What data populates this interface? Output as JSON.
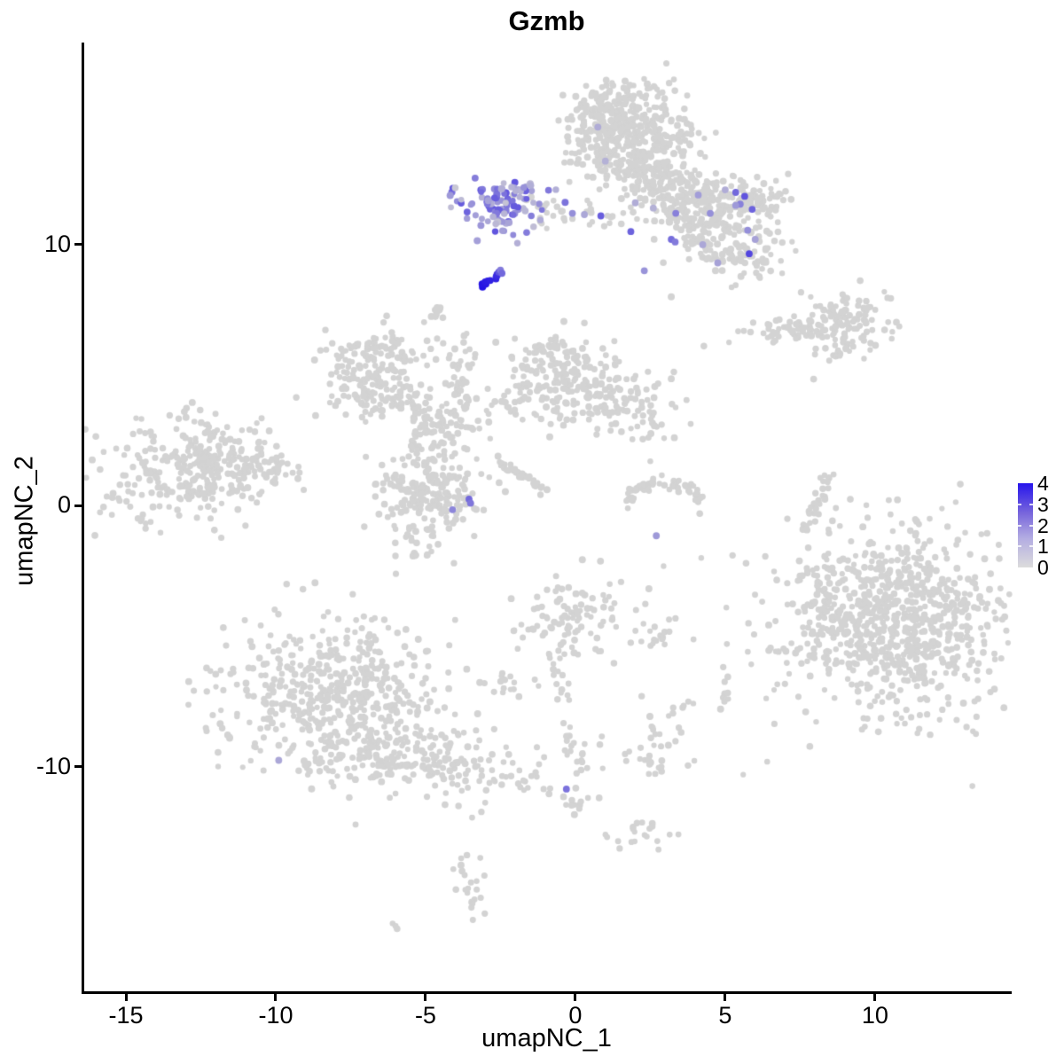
{
  "title": "Gzmb",
  "axes": {
    "x": {
      "label": "umapNC_1",
      "ticks": [
        -15,
        -10,
        -5,
        0,
        5,
        10
      ]
    },
    "y": {
      "label": "umapNC_2",
      "ticks": [
        -10,
        0,
        10
      ]
    }
  },
  "legend": {
    "ticks": [
      0,
      1,
      2,
      3,
      4
    ],
    "low_color": "#DCDCDC",
    "high_color": "#2715EC"
  },
  "colors": {
    "background": "#FFFFFF",
    "axis": "#000000",
    "grey_point": "#D3D3D3"
  },
  "chart_data": {
    "type": "scatter",
    "title": "Gzmb",
    "xlabel": "umapNC_1",
    "ylabel": "umapNC_2",
    "xlim": [
      -16.45,
      14.53
    ],
    "ylim": [
      -18.63,
      17.84
    ],
    "grid": false,
    "legend_position": "right",
    "point_color_scale": {
      "low": "#D3D3D3",
      "high": "#2210E4",
      "domain": [
        0,
        4
      ]
    },
    "seed": 42,
    "clusters": [
      {
        "name": "top-mushroom-main",
        "t": "g",
        "x": 1.9,
        "y": 14.2,
        "sx": 1.0,
        "sy": 0.95,
        "n": 360
      },
      {
        "name": "top-mushroom-cap",
        "t": "g",
        "x": 1.1,
        "y": 15.2,
        "sx": 0.6,
        "sy": 0.45,
        "n": 60
      },
      {
        "name": "top-mushroom-left",
        "t": "g",
        "x": 0.45,
        "y": 14.6,
        "sx": 0.5,
        "sy": 0.6,
        "n": 60
      },
      {
        "name": "top-stem",
        "t": "g",
        "x": 2.7,
        "y": 12.4,
        "sx": 0.75,
        "sy": 0.7,
        "n": 120
      },
      {
        "name": "wing-b0",
        "t": "g",
        "x": 3.9,
        "y": 11.4,
        "sx": 0.65,
        "sy": 0.55,
        "n": 70
      },
      {
        "name": "wing-b1-arm",
        "t": "g",
        "x": 4.9,
        "y": 11.8,
        "sx": 1.0,
        "sy": 0.45,
        "n": 120
      },
      {
        "name": "wing-tip",
        "t": "g",
        "x": 6.2,
        "y": 11.7,
        "sx": 0.45,
        "sy": 0.4,
        "n": 30
      },
      {
        "name": "wing-b2",
        "t": "g",
        "x": 4.4,
        "y": 10.4,
        "sx": 0.8,
        "sy": 0.6,
        "n": 80
      },
      {
        "name": "wing-b3",
        "t": "g",
        "x": 5.6,
        "y": 9.6,
        "sx": 0.7,
        "sy": 0.5,
        "n": 70
      },
      {
        "name": "bridge-grey",
        "t": "g",
        "x": 0.3,
        "y": 11.2,
        "sx": 0.85,
        "sy": 0.25,
        "n": 16
      },
      {
        "name": "p-trail-grey",
        "t": "g",
        "x": -1.0,
        "y": 11.3,
        "sx": 0.7,
        "sy": 0.28,
        "n": 20
      },
      {
        "name": "below-p-blob",
        "t": "g",
        "x": -4.65,
        "y": 7.3,
        "sx": 0.22,
        "sy": 0.28,
        "n": 12
      },
      {
        "name": "sausage-arm",
        "t": "g",
        "x": 7.3,
        "y": 6.8,
        "sx": 0.85,
        "sy": 0.28,
        "n": 60
      },
      {
        "name": "sausage-lobe",
        "t": "g",
        "x": 9.2,
        "y": 7.0,
        "sx": 0.8,
        "sy": 0.55,
        "n": 100
      },
      {
        "name": "sausage-streak",
        "t": "s",
        "x1": 8.5,
        "y1": 5.66,
        "x2": 9.05,
        "y2": 6.04,
        "j": 0.08,
        "n": 10
      },
      {
        "name": "mid-left",
        "t": "g",
        "x": -6.95,
        "y": 5.05,
        "sx": 0.9,
        "sy": 0.8,
        "n": 150
      },
      {
        "name": "mid-left-top",
        "t": "g",
        "x": -6.1,
        "y": 6.1,
        "sx": 0.5,
        "sy": 0.3,
        "n": 30
      },
      {
        "name": "mid-left-arm",
        "t": "g",
        "x": -5.7,
        "y": 4.0,
        "sx": 0.6,
        "sy": 0.4,
        "n": 40
      },
      {
        "name": "vertical-arm",
        "t": "g",
        "x": -3.72,
        "y": 4.9,
        "sx": 0.28,
        "sy": 0.9,
        "n": 45
      },
      {
        "name": "junction-1",
        "t": "g",
        "x": -4.55,
        "y": 2.9,
        "sx": 0.6,
        "sy": 0.7,
        "n": 95
      },
      {
        "name": "bridge-up",
        "t": "s",
        "x1": -3.3,
        "y1": 3.5,
        "x2": -1.0,
        "y2": 4.5,
        "j": 0.22,
        "n": 28
      },
      {
        "name": "north-arm",
        "t": "g",
        "x": -0.5,
        "y": 4.9,
        "sx": 1.0,
        "sy": 0.8,
        "n": 150
      },
      {
        "name": "north-arm-top",
        "t": "g",
        "x": -0.8,
        "y": 6.0,
        "sx": 0.5,
        "sy": 0.35,
        "n": 20
      },
      {
        "name": "east-arm",
        "t": "g",
        "x": 1.4,
        "y": 3.9,
        "sx": 0.95,
        "sy": 0.65,
        "n": 85
      },
      {
        "name": "east-arm-ext",
        "t": "g",
        "x": 2.3,
        "y": 3.2,
        "sx": 0.5,
        "sy": 0.4,
        "n": 18
      },
      {
        "name": "diag-streak",
        "t": "s",
        "x1": -2.54,
        "y1": 1.77,
        "x2": -1.05,
        "y2": 0.6,
        "j": 0.08,
        "n": 32
      },
      {
        "name": "mc2-blob",
        "t": "g",
        "x": -4.9,
        "y": 0.5,
        "sx": 0.85,
        "sy": 0.75,
        "n": 190
      },
      {
        "name": "mc2-low-sparse",
        "t": "g",
        "x": -5.2,
        "y": -1.6,
        "sx": 0.7,
        "sy": 0.55,
        "n": 26
      },
      {
        "name": "crescent",
        "t": "a",
        "x": 2.95,
        "y": 0.1,
        "rx": 1.25,
        "ry": 0.8,
        "a1": 190,
        "a2": 350,
        "j": 0.13,
        "n": 58
      },
      {
        "name": "thin-vertical",
        "t": "s",
        "x1": 8.5,
        "y1": 1.25,
        "x2": 7.75,
        "y2": -1.05,
        "j": 0.14,
        "n": 26
      },
      {
        "name": "left-main",
        "t": "g",
        "x": -12.9,
        "y": 1.3,
        "sx": 1.45,
        "sy": 1.0,
        "n": 280
      },
      {
        "name": "left-east",
        "t": "g",
        "x": -11.5,
        "y": 1.9,
        "sx": 0.8,
        "sy": 0.5,
        "n": 60
      },
      {
        "name": "left-trail",
        "t": "g",
        "x": -10.2,
        "y": 1.5,
        "sx": 0.7,
        "sy": 0.22,
        "n": 16
      },
      {
        "name": "bottom-left-main",
        "t": "g",
        "x": -8.2,
        "y": -6.9,
        "sx": 1.9,
        "sy": 1.35,
        "n": 420
      },
      {
        "name": "bottom-left-low",
        "t": "g",
        "x": -6.4,
        "y": -9.2,
        "sx": 1.7,
        "sy": 0.85,
        "n": 200
      },
      {
        "name": "bottom-left-tail",
        "t": "g",
        "x": -3.6,
        "y": -10.1,
        "sx": 1.3,
        "sy": 0.5,
        "n": 70
      },
      {
        "name": "bottom-left-trail",
        "t": "g",
        "x": -1.7,
        "y": -10.5,
        "sx": 0.55,
        "sy": 0.25,
        "n": 10
      },
      {
        "name": "chain-top",
        "t": "g",
        "x": 0.05,
        "y": -4.1,
        "sx": 1.2,
        "sy": 0.8,
        "n": 110
      },
      {
        "name": "chain-line",
        "t": "s",
        "x1": -0.75,
        "y1": -5.6,
        "x2": -0.3,
        "y2": -7.6,
        "j": 0.18,
        "n": 15
      },
      {
        "name": "chain-blob",
        "t": "g",
        "x": -2.2,
        "y": -6.9,
        "sx": 0.5,
        "sy": 0.38,
        "n": 16
      },
      {
        "name": "chain-mid",
        "t": "s",
        "x1": -0.25,
        "y1": -8.6,
        "x2": 0.2,
        "y2": -10.2,
        "j": 0.15,
        "n": 20
      },
      {
        "name": "chain-low",
        "t": "g",
        "x": 0.05,
        "y": -11.5,
        "sx": 0.33,
        "sy": 0.28,
        "n": 12
      },
      {
        "name": "chain-bottom",
        "t": "g",
        "x": 2.3,
        "y": -12.55,
        "sx": 0.6,
        "sy": 0.3,
        "n": 20
      },
      {
        "name": "far-bottom-1",
        "t": "g",
        "x": -3.5,
        "y": -14.6,
        "sx": 0.28,
        "sy": 0.7,
        "n": 22
      },
      {
        "name": "far-bottom-2",
        "t": "p",
        "pts": [
          [
            -6.1,
            -16.0
          ],
          [
            -5.95,
            -16.2
          ],
          [
            -6.0,
            -16.1
          ]
        ]
      },
      {
        "name": "far-bottom-pair",
        "t": "p",
        "pts": [
          [
            -4.35,
            -11.45
          ],
          [
            -3.9,
            -11.5
          ]
        ]
      },
      {
        "name": "bottom-right-core",
        "t": "g",
        "x": 11.2,
        "y": -4.3,
        "sx": 1.6,
        "sy": 1.75,
        "n": 520
      },
      {
        "name": "bottom-right-spread",
        "t": "g",
        "x": 9.9,
        "y": -4.5,
        "sx": 2.1,
        "sy": 1.9,
        "n": 260
      },
      {
        "name": "bottom-right-left-edge",
        "t": "g",
        "x": 8.35,
        "y": -4.2,
        "sx": 0.65,
        "sy": 1.2,
        "n": 80
      },
      {
        "name": "satellite-1",
        "t": "g",
        "x": 2.9,
        "y": -5.1,
        "sx": 0.3,
        "sy": 0.18,
        "n": 9
      },
      {
        "name": "satellite-2",
        "t": "g",
        "x": 5.1,
        "y": -7.4,
        "sx": 0.2,
        "sy": 0.28,
        "n": 7
      },
      {
        "name": "satellite-3",
        "t": "g",
        "x": 3.4,
        "y": -7.75,
        "sx": 0.25,
        "sy": 0.2,
        "n": 6
      },
      {
        "name": "satellite-4",
        "t": "g",
        "x": 2.5,
        "y": -8.6,
        "sx": 0.18,
        "sy": 0.18,
        "n": 5
      },
      {
        "name": "satellite-5",
        "t": "g",
        "x": 2.5,
        "y": -9.6,
        "sx": 0.75,
        "sy": 0.4,
        "n": 30
      },
      {
        "name": "singles",
        "t": "p",
        "pts": [
          [
            7.95,
            4.85
          ],
          [
            2.25,
            2.55
          ],
          [
            2.5,
            1.7
          ],
          [
            4.2,
            -2.0
          ],
          [
            6.4,
            -9.8
          ],
          [
            5.6,
            -10.3
          ],
          [
            1.3,
            6.3
          ],
          [
            0.3,
            7.0
          ],
          [
            -0.2,
            12.4
          ],
          [
            3.2,
            8.0
          ],
          [
            6.9,
            8.9
          ],
          [
            2.2,
            -5.2
          ],
          [
            1.75,
            -0.1
          ],
          [
            4.15,
            -0.3
          ]
        ]
      },
      {
        "name": "gzmb-pos-main",
        "t": "g",
        "x": -2.35,
        "y": 11.6,
        "sx": 0.75,
        "sy": 0.5,
        "n": 80,
        "e": [
          0.5,
          2.6
        ]
      },
      {
        "name": "gzmb-pos-halo",
        "t": "g",
        "x": -2.3,
        "y": 11.3,
        "sx": 1.0,
        "sy": 0.7,
        "n": 25,
        "e": [
          0.2,
          1.2
        ]
      },
      {
        "name": "gzmb-high-streak",
        "t": "s",
        "x1": -3.1,
        "y1": 8.35,
        "x2": -2.62,
        "y2": 8.9,
        "j": 0.05,
        "n": 12,
        "e": [
          3.4,
          4.0
        ]
      }
    ],
    "feature_points": [
      [
        5.35,
        12.0,
        2.2
      ],
      [
        5.65,
        11.85,
        2.6
      ],
      [
        5.9,
        11.35,
        2.3
      ],
      [
        5.5,
        11.55,
        1.7
      ],
      [
        5.35,
        11.5,
        1.2
      ],
      [
        5.75,
        10.55,
        1.4
      ],
      [
        5.8,
        9.65,
        2.9
      ],
      [
        4.1,
        11.9,
        1.1
      ],
      [
        4.5,
        11.2,
        1.4
      ],
      [
        3.35,
        11.2,
        1.7
      ],
      [
        3.2,
        10.2,
        2.1
      ],
      [
        3.33,
        10.1,
        1.8
      ],
      [
        1.85,
        10.5,
        2.3
      ],
      [
        0.85,
        11.1,
        2.4
      ],
      [
        -0.1,
        11.2,
        1.4
      ],
      [
        0.3,
        11.15,
        0.9
      ],
      [
        2.0,
        11.6,
        0.8
      ],
      [
        2.6,
        11.4,
        0.7
      ],
      [
        4.25,
        10.0,
        0.9
      ],
      [
        4.75,
        9.3,
        1.0
      ],
      [
        2.3,
        9.0,
        1.3
      ],
      [
        1.0,
        13.2,
        0.7
      ],
      [
        0.75,
        14.5,
        0.8
      ],
      [
        6.0,
        10.2,
        1.0
      ],
      [
        5.0,
        12.1,
        0.8
      ],
      [
        -3.55,
        0.25,
        2.2
      ],
      [
        -3.5,
        0.1,
        1.9
      ],
      [
        -4.1,
        -0.15,
        1.6
      ],
      [
        2.7,
        -1.15,
        1.2
      ],
      [
        -0.3,
        -10.85,
        2.0
      ],
      [
        -9.9,
        -9.75,
        0.9
      ],
      [
        -2.56,
        8.95,
        2.6
      ],
      [
        -2.5,
        9.02,
        1.8
      ],
      [
        -2.45,
        8.9,
        2.2
      ]
    ]
  }
}
